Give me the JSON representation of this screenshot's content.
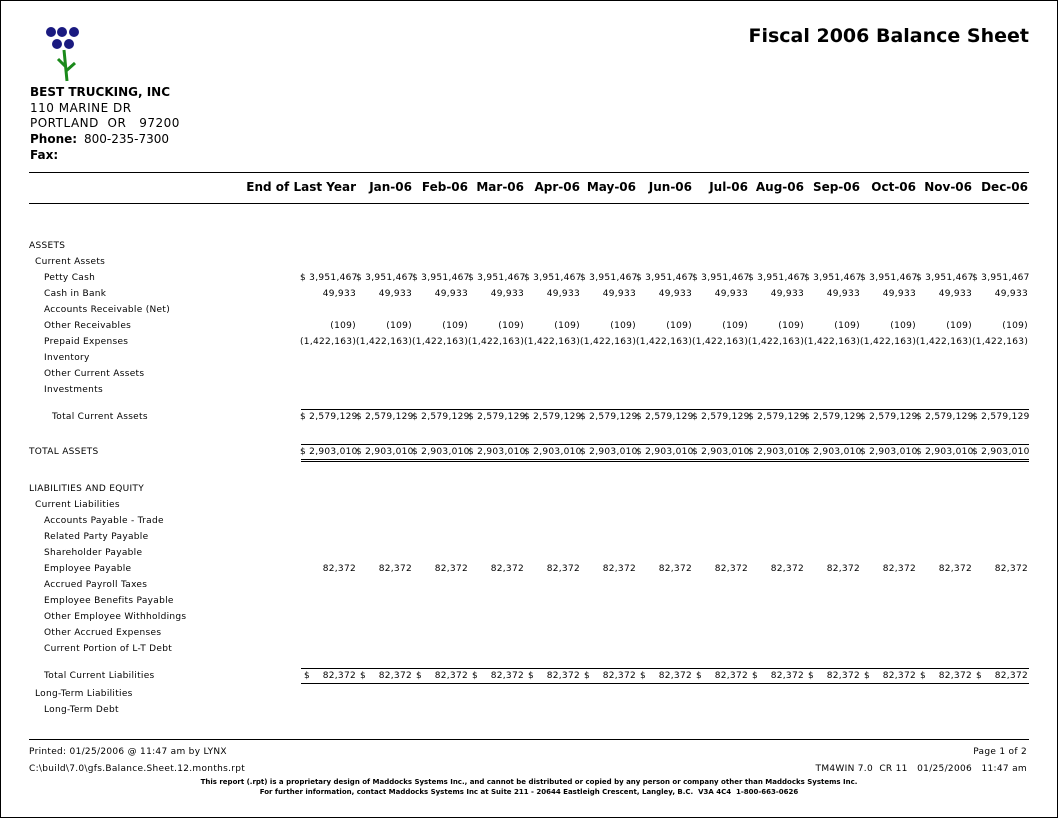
{
  "header": {
    "company": "BEST TRUCKING, INC",
    "address1": "110 MARINE DR",
    "address2": "PORTLAND  OR   97200",
    "phone_label": "Phone:",
    "phone": "800-235-7300",
    "fax_label": "Fax:",
    "title": "Fiscal 2006 Balance Sheet"
  },
  "columns": [
    "End of Last Year",
    "Jan-06",
    "Feb-06",
    "Mar-06",
    "Apr-06",
    "May-06",
    "Jun-06",
    "Jul-06",
    "Aug-06",
    "Sep-06",
    "Oct-06",
    "Nov-06",
    "Dec-06"
  ],
  "assets": {
    "title": "ASSETS",
    "current": {
      "title": "Current Assets",
      "items": [
        {
          "label": "Petty Cash",
          "values": [
            "$ 3,951,467",
            "$ 3,951,467",
            "$ 3,951,467",
            "$ 3,951,467",
            "$ 3,951,467",
            "$ 3,951,467",
            "$ 3,951,467",
            "$ 3,951,467",
            "$ 3,951,467",
            "$ 3,951,467",
            "$ 3,951,467",
            "$ 3,951,467",
            "$ 3,951,467"
          ]
        },
        {
          "label": "Cash in Bank",
          "values": [
            "49,933",
            "49,933",
            "49,933",
            "49,933",
            "49,933",
            "49,933",
            "49,933",
            "49,933",
            "49,933",
            "49,933",
            "49,933",
            "49,933",
            "49,933"
          ]
        },
        {
          "label": "Accounts Receivable (Net)"
        },
        {
          "label": "Other Receivables",
          "values": [
            "(109)",
            "(109)",
            "(109)",
            "(109)",
            "(109)",
            "(109)",
            "(109)",
            "(109)",
            "(109)",
            "(109)",
            "(109)",
            "(109)",
            "(109)"
          ]
        },
        {
          "label": "Prepaid Expenses",
          "values": [
            "(1,422,163)",
            "(1,422,163)",
            "(1,422,163)",
            "(1,422,163)",
            "(1,422,163)",
            "(1,422,163)",
            "(1,422,163)",
            "(1,422,163)",
            "(1,422,163)",
            "(1,422,163)",
            "(1,422,163)",
            "(1,422,163)",
            "(1,422,163)"
          ]
        },
        {
          "label": "Inventory"
        },
        {
          "label": "Other Current Assets"
        },
        {
          "label": "Investments"
        }
      ],
      "total": {
        "label": "Total Current Assets",
        "values": [
          "$ 2,579,129",
          "$ 2,579,129",
          "$ 2,579,129",
          "$ 2,579,129",
          "$ 2,579,129",
          "$ 2,579,129",
          "$ 2,579,129",
          "$ 2,579,129",
          "$ 2,579,129",
          "$ 2,579,129",
          "$ 2,579,129",
          "$ 2,579,129",
          "$ 2,579,129"
        ]
      }
    },
    "total": {
      "label": "TOTAL ASSETS",
      "values": [
        "$ 2,903,010",
        "$ 2,903,010",
        "$ 2,903,010",
        "$ 2,903,010",
        "$ 2,903,010",
        "$ 2,903,010",
        "$ 2,903,010",
        "$ 2,903,010",
        "$ 2,903,010",
        "$ 2,903,010",
        "$ 2,903,010",
        "$ 2,903,010",
        "$ 2,903,010"
      ]
    }
  },
  "liabilities": {
    "title": "LIABILITIES AND EQUITY",
    "current": {
      "title": "Current Liabilities",
      "items": [
        {
          "label": "Accounts Payable - Trade"
        },
        {
          "label": "Related Party Payable"
        },
        {
          "label": "Shareholder Payable"
        },
        {
          "label": "Employee Payable",
          "values": [
            "82,372",
            "82,372",
            "82,372",
            "82,372",
            "82,372",
            "82,372",
            "82,372",
            "82,372",
            "82,372",
            "82,372",
            "82,372",
            "82,372",
            "82,372"
          ]
        },
        {
          "label": "Accrued Payroll Taxes"
        },
        {
          "label": "Employee Benefits Payable"
        },
        {
          "label": "Other Employee Withholdings"
        },
        {
          "label": "Other Accrued Expenses"
        },
        {
          "label": "Current Portion of L-T Debt"
        }
      ],
      "total": {
        "label": "Total Current Liabilities",
        "values": [
          "$ 82,372",
          "$ 82,372",
          "$ 82,372",
          "$ 82,372",
          "$ 82,372",
          "$ 82,372",
          "$ 82,372",
          "$ 82,372",
          "$ 82,372",
          "$ 82,372",
          "$ 82,372",
          "$ 82,372",
          "$ 82,372"
        ]
      }
    },
    "long_term": {
      "title": "Long-Term Liabilities",
      "items": [
        {
          "label": "Long-Term Debt"
        }
      ]
    }
  },
  "footer": {
    "printed": "Printed: 01/25/2006 @ 11:47 am by LYNX",
    "page": "Page 1 of 2",
    "path": "C:\\build\\7.0\\gfs.Balance.Sheet.12.months.rpt",
    "version": "TM4WIN 7.0  CR 11   01/25/2006   11:47 am",
    "notice1": "This report (.rpt) is a proprietary design of Maddocks Systems Inc., and cannot be distributed or copied by any person or company other than Maddocks Systems Inc.",
    "notice2": "For further information, contact Maddocks Systems Inc at Suite 211 - 20644 Eastleigh Crescent, Langley, B.C.  V3A 4C4  1-800-663-0626"
  }
}
